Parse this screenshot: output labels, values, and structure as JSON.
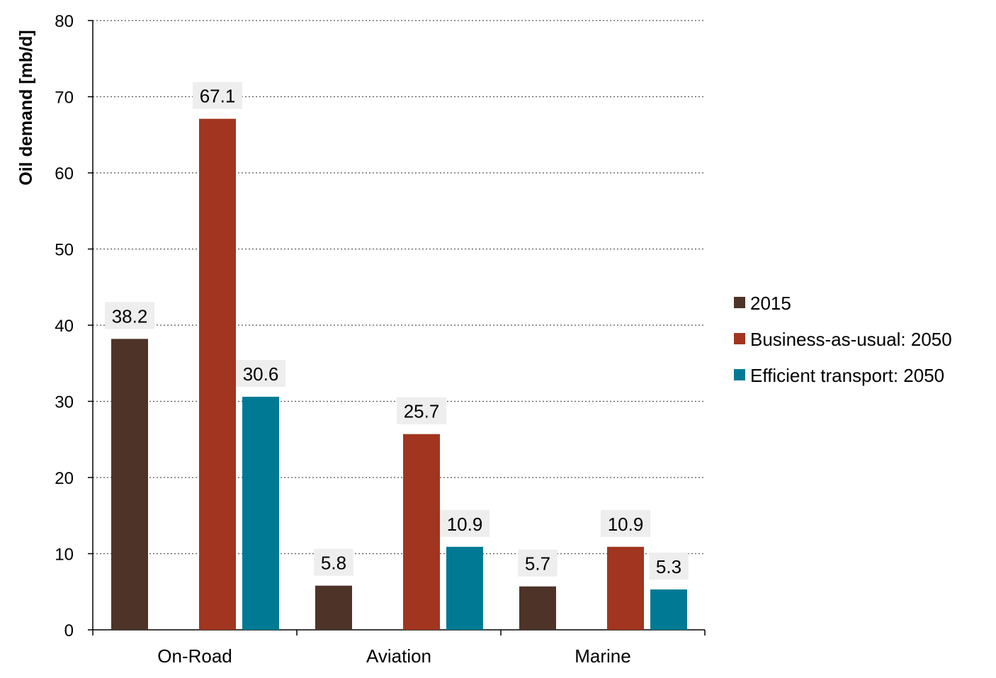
{
  "chart_data": {
    "type": "bar",
    "title": "",
    "xlabel": "",
    "ylabel": "Oil demand [mb/d]",
    "ylim": [
      0,
      80
    ],
    "yticks": [
      0,
      10,
      20,
      30,
      40,
      50,
      60,
      70,
      80
    ],
    "grid": "horizontal dotted",
    "legend_position": "right",
    "categories": [
      "On-Road",
      "Aviation",
      "Marine"
    ],
    "series": [
      {
        "name": "2015",
        "color": "#4e3328",
        "values": [
          38.2,
          5.8,
          5.7
        ]
      },
      {
        "name": "Business-as-usual: 2050",
        "color": "#a1351f",
        "values": [
          67.1,
          25.7,
          10.9
        ]
      },
      {
        "name": "Efficient transport: 2050",
        "color": "#007a94",
        "values": [
          30.6,
          10.9,
          5.3
        ]
      }
    ]
  }
}
